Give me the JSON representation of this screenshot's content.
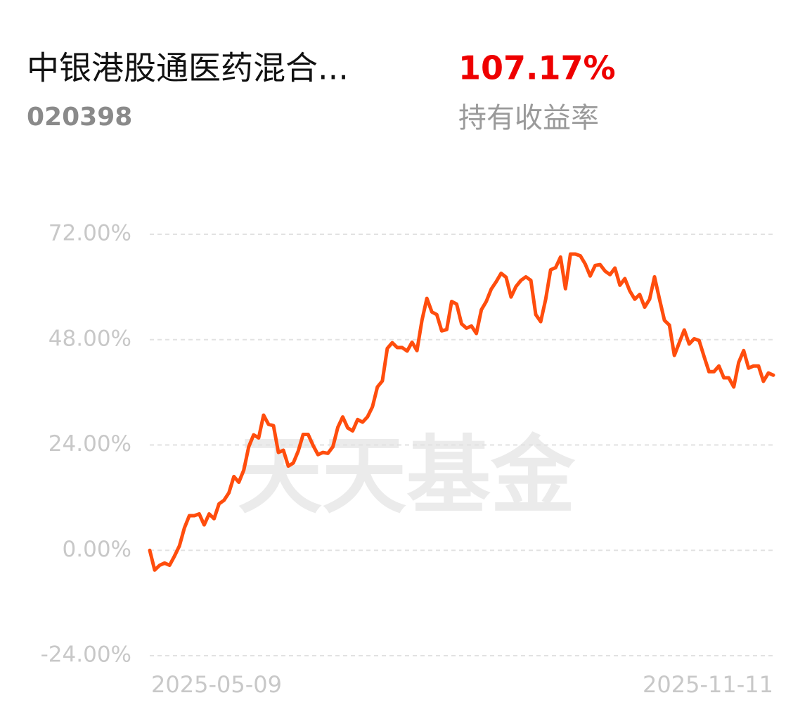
{
  "header": {
    "fund_name": "中银港股通医药混合...",
    "fund_code": "020398",
    "return_value": "107.17%",
    "return_label": "持有收益率"
  },
  "chart_data": {
    "type": "line",
    "watermark": "天天基金",
    "color": "#ff4d0d",
    "grid": true,
    "ylim": [
      -24,
      72
    ],
    "yticks": [
      {
        "value": 72,
        "label": "72.00%"
      },
      {
        "value": 48,
        "label": "48.00%"
      },
      {
        "value": 24,
        "label": "24.00%"
      },
      {
        "value": 0,
        "label": "0.00%"
      },
      {
        "value": -24,
        "label": "-24.00%"
      }
    ],
    "categories": [
      "2025-05-09",
      null,
      null,
      null,
      null,
      null,
      null,
      null,
      null,
      null,
      null,
      null,
      null,
      null,
      null,
      null,
      null,
      null,
      null,
      null,
      null,
      null,
      null,
      null,
      null,
      null,
      null,
      null,
      null,
      null,
      null,
      null,
      null,
      null,
      null,
      null,
      null,
      null,
      null,
      null,
      null,
      null,
      null,
      null,
      null,
      null,
      null,
      null,
      null,
      null,
      null,
      null,
      null,
      null,
      null,
      null,
      null,
      null,
      null,
      null,
      null,
      null,
      null,
      null,
      null,
      null,
      null,
      null,
      null,
      null,
      null,
      null,
      null,
      null,
      null,
      null,
      null,
      null,
      null,
      null,
      null,
      null,
      null,
      null,
      null,
      null,
      null,
      null,
      null,
      null,
      null,
      null,
      null,
      null,
      null,
      null,
      null,
      null,
      null,
      null,
      null,
      null,
      null,
      null,
      null,
      null,
      null,
      null,
      null,
      null,
      null,
      null,
      null,
      null,
      null,
      null,
      null,
      null,
      null,
      null,
      null,
      null,
      null,
      null,
      null,
      null,
      "2025-11-11"
    ],
    "values": [
      0,
      -4.5,
      -3.4,
      -2.9,
      -3.4,
      -1.3,
      1.0,
      5.1,
      7.9,
      7.9,
      8.3,
      5.8,
      8.3,
      7.2,
      10.6,
      11.4,
      13.1,
      16.8,
      15.5,
      18.3,
      23.6,
      26.3,
      25.6,
      30.8,
      28.7,
      28.4,
      22.3,
      22.8,
      19.2,
      19.9,
      22.6,
      26.4,
      26.4,
      23.9,
      21.8,
      22.3,
      22.1,
      23.6,
      28.0,
      30.4,
      27.9,
      27.2,
      29.8,
      29.2,
      30.4,
      32.7,
      37.2,
      38.6,
      46.0,
      47.3,
      46.2,
      46.2,
      45.4,
      47.4,
      45.5,
      52.4,
      57.4,
      54.3,
      53.7,
      50.0,
      50.3,
      56.7,
      56.1,
      51.6,
      50.6,
      51.1,
      49.4,
      54.8,
      56.7,
      59.5,
      61.2,
      63.1,
      62.2,
      57.7,
      60.1,
      61.5,
      62.3,
      61.5,
      53.7,
      52.1,
      57.2,
      63.9,
      64.4,
      66.8,
      59.6,
      67.5,
      67.5,
      67.1,
      65.2,
      62.5,
      64.9,
      65.1,
      63.6,
      62.8,
      64.3,
      60.4,
      61.9,
      59.1,
      57.2,
      58.3,
      55.4,
      57.2,
      62.3,
      57.2,
      52.4,
      51.3,
      44.4,
      47.3,
      50.2,
      47.0,
      48.2,
      47.8,
      44.2,
      40.7,
      40.7,
      42.0,
      39.3,
      39.3,
      37.2,
      42.8,
      45.5,
      41.5,
      42.0,
      42.0,
      38.5,
      40.4,
      39.9
    ]
  }
}
